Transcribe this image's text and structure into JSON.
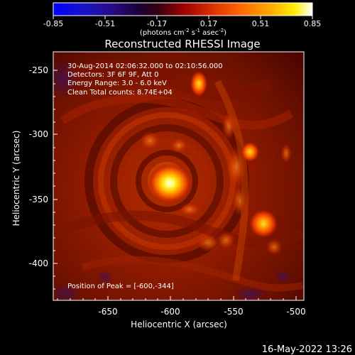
{
  "colorbar": {
    "ticks": [
      "-0.85",
      "-0.51",
      "-0.17",
      "0.17",
      "0.51",
      "0.85"
    ],
    "tick_values": [
      -0.85,
      -0.51,
      -0.17,
      0.17,
      0.51,
      0.85
    ],
    "range": [
      -0.85,
      0.85
    ],
    "unit_parts": [
      "(photons cm",
      "-2",
      " s",
      "-1",
      " asec",
      "-2",
      ")"
    ],
    "colormap": "blue-to-black-to-red-to-yellow-to-white"
  },
  "image": {
    "title": "Reconstructed RHESSI Image",
    "info_lines": [
      "30-Aug-2014 02:06:32.000 to 02:10:56.000",
      "Detectors: 3F 6F 9F, Att 0",
      "Energy Range: 3.0 - 6.0 keV",
      "Clean     Total counts: 8.74E+04"
    ],
    "peak_text": "Position of Peak = [-600,-344]",
    "xlabel": "Heliocentric X (arcsec)",
    "ylabel": "Heliocentric Y (arcsec)",
    "x_ticks": [
      "-650",
      "-600",
      "-550",
      "-500"
    ],
    "x_tick_values": [
      -650,
      -600,
      -550,
      -500
    ],
    "y_ticks": [
      "-250",
      "-300",
      "-350",
      "-400"
    ],
    "y_tick_values": [
      -250,
      -300,
      -350,
      -400
    ],
    "xlim": [
      -693,
      -500
    ],
    "ylim": [
      -425,
      -235
    ]
  },
  "footer": {
    "timestamp": "16-May-2022 13:26"
  },
  "colors": {
    "background": "#000000",
    "text": "#ffffff",
    "image_mid": "#8f1a00",
    "image_peak": "#ffff55"
  },
  "chart_data": {
    "type": "heatmap",
    "title": "Reconstructed RHESSI Image",
    "xlabel": "Heliocentric X (arcsec)",
    "ylabel": "Heliocentric Y (arcsec)",
    "xlim": [
      -693,
      -500
    ],
    "ylim": [
      -425,
      -235
    ],
    "x_ticks": [
      -650,
      -600,
      -550,
      -500
    ],
    "y_ticks": [
      -250,
      -300,
      -350,
      -400
    ],
    "color_range": [
      -0.85,
      0.85
    ],
    "peak": [
      -600,
      -344
    ],
    "sources": [
      {
        "x": -600,
        "y": -344
      },
      {
        "x": -578,
        "y": -257
      },
      {
        "x": -535,
        "y": -312
      },
      {
        "x": -528,
        "y": -375
      }
    ]
  }
}
